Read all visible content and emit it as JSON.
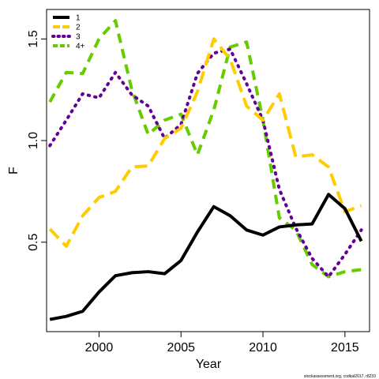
{
  "chart_data": {
    "type": "line",
    "xlabel": "Year",
    "ylabel": "F",
    "xlim": [
      1996.8,
      2016.5
    ],
    "ylim": [
      0.06,
      1.645
    ],
    "x_ticks": [
      2000,
      2005,
      2010,
      2015
    ],
    "y_ticks": [
      0.5,
      1.0,
      1.5
    ],
    "x_tick_labels": [
      "2000",
      "2005",
      "2010",
      "2015"
    ],
    "y_tick_labels": [
      "0.5",
      "1.0",
      "1.5"
    ],
    "legend_position": "top-left",
    "grid": false,
    "x": [
      1997,
      1998,
      1999,
      2000,
      2001,
      2002,
      2003,
      2004,
      2005,
      2006,
      2007,
      2008,
      2009,
      2010,
      2011,
      2012,
      2013,
      2014,
      2015,
      2016
    ],
    "series": [
      {
        "name": "1",
        "color": "#000000",
        "dash": "solid",
        "values": [
          0.12,
          0.135,
          0.16,
          0.255,
          0.335,
          0.35,
          0.355,
          0.345,
          0.41,
          0.55,
          0.675,
          0.63,
          0.56,
          0.535,
          0.575,
          0.585,
          0.59,
          0.735,
          0.665,
          0.505
        ]
      },
      {
        "name": "2",
        "color": "#ffcc00",
        "dash": "long-dash",
        "values": [
          0.565,
          0.48,
          0.63,
          0.72,
          0.75,
          0.87,
          0.875,
          1.01,
          1.06,
          1.24,
          1.5,
          1.4,
          1.17,
          1.1,
          1.23,
          0.92,
          0.93,
          0.87,
          0.65,
          0.68
        ]
      },
      {
        "name": "3",
        "color": "#660099",
        "dash": "dotted",
        "values": [
          0.975,
          1.1,
          1.23,
          1.21,
          1.335,
          1.225,
          1.17,
          1.01,
          1.08,
          1.33,
          1.43,
          1.45,
          1.28,
          1.1,
          0.76,
          0.57,
          0.42,
          0.33,
          0.44,
          0.56
        ]
      },
      {
        "name": "4+",
        "color": "#66cc00",
        "dash": "dash",
        "values": [
          1.19,
          1.335,
          1.33,
          1.5,
          1.59,
          1.25,
          1.03,
          1.1,
          1.13,
          0.93,
          1.15,
          1.46,
          1.485,
          1.1,
          0.62,
          0.56,
          0.39,
          0.33,
          0.355,
          0.365
        ]
      }
    ]
  },
  "footer": "stockassessment.org, codkat2017, r8233"
}
